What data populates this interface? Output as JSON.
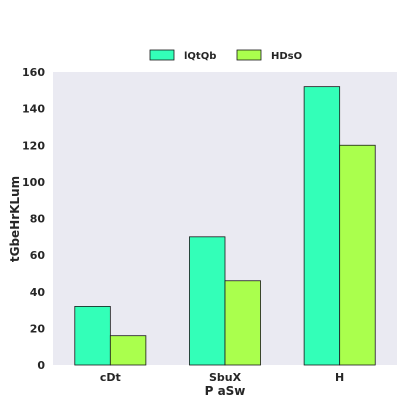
{
  "chart_data": {
    "type": "bar",
    "title": "",
    "xlabel": "P  aSw",
    "ylabel": "tGbeHrKLum",
    "categories": [
      "cDt",
      "SbuX",
      "H"
    ],
    "series": [
      {
        "name": "lQtQb",
        "values": [
          32,
          70,
          152
        ],
        "color": "#33ffb8"
      },
      {
        "name": "HDsO",
        "values": [
          16,
          46,
          120
        ],
        "color": "#aaff4d"
      }
    ],
    "ylim": [
      0,
      160
    ],
    "yticks": [
      0,
      20,
      40,
      60,
      80,
      100,
      120,
      140,
      160
    ],
    "grid": false,
    "legend_position": "top-center",
    "background_color": "#eaeaf2",
    "edge_color": "#1a1a1a"
  }
}
